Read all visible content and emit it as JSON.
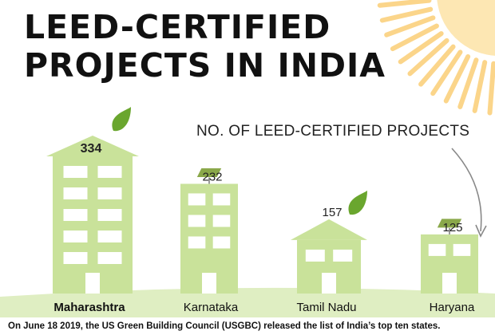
{
  "title": {
    "line1": "LEED-CERTIFIED",
    "line2": "PROJECTS IN INDIA"
  },
  "metric_label": "NO. OF LEED-CERTIFIED PROJECTS",
  "footnote": "On June 18 2019, the US Green Building Council (USGBC) released the list of India’s top ten states.",
  "colors": {
    "building": "#c9e29a",
    "window": "#ffffff",
    "door": "#d6e9b0",
    "ground": "#dfeec2",
    "sun": "#fde7b3",
    "sun_ray": "#fbd58a",
    "leaf": "#6aa62e",
    "solar_panel": "#8aa84a",
    "title_text": "#111111"
  },
  "chart_data": {
    "type": "bar",
    "title": "LEED-CERTIFIED PROJECTS IN INDIA",
    "ylabel": "NO. OF LEED-CERTIFIED PROJECTS",
    "xlabel": "",
    "categories": [
      "Maharashtra",
      "Karnataka",
      "Tamil Nadu",
      "Haryana"
    ],
    "values": [
      334,
      232,
      157,
      125
    ],
    "roof_icons": [
      "leaf-icon",
      "solar-panel-icon",
      "leaf-icon",
      "solar-panel-icon"
    ],
    "ylim": [
      0,
      334
    ],
    "grid": false,
    "legend": "none"
  }
}
